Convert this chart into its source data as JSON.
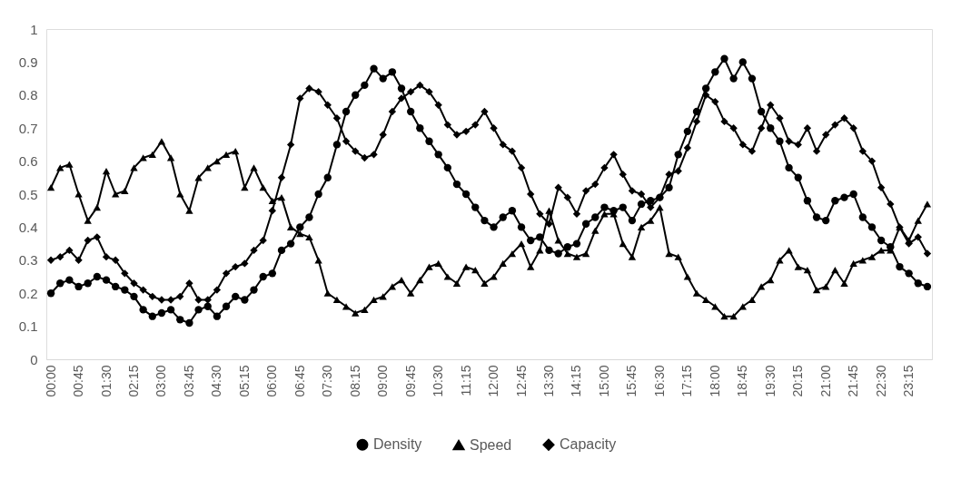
{
  "chart_data": {
    "type": "line",
    "categories": [
      "00:00",
      null,
      null,
      "00:45",
      null,
      null,
      "01:30",
      null,
      null,
      "02:15",
      null,
      null,
      "03:00",
      null,
      null,
      "03:45",
      null,
      null,
      "04:30",
      null,
      null,
      "05:15",
      null,
      null,
      "06:00",
      null,
      null,
      "06:45",
      null,
      null,
      "07:30",
      null,
      null,
      "08:15",
      null,
      null,
      "09:00",
      null,
      null,
      "09:45",
      null,
      null,
      "10:30",
      null,
      null,
      "11:15",
      null,
      null,
      "12:00",
      null,
      null,
      "12:45",
      null,
      null,
      "13:30",
      null,
      null,
      "14:15",
      null,
      null,
      "15:00",
      null,
      null,
      "15:45",
      null,
      null,
      "16:30",
      null,
      null,
      "17:15",
      null,
      null,
      "18:00",
      null,
      null,
      "18:45",
      null,
      null,
      "19:30",
      null,
      null,
      "20:15",
      null,
      null,
      "21:00",
      null,
      null,
      "21:45",
      null,
      null,
      "22:30",
      null,
      null,
      "23:15",
      null,
      null
    ],
    "series": [
      {
        "name": "Density",
        "color": "#000000",
        "marker": "circle",
        "values": [
          0.2,
          0.23,
          0.24,
          0.22,
          0.23,
          0.25,
          0.24,
          0.22,
          0.21,
          0.19,
          0.15,
          0.13,
          0.14,
          0.15,
          0.12,
          0.11,
          0.15,
          0.16,
          0.13,
          0.16,
          0.19,
          0.18,
          0.21,
          0.25,
          0.26,
          0.33,
          0.35,
          0.4,
          0.43,
          0.5,
          0.55,
          0.65,
          0.75,
          0.8,
          0.83,
          0.88,
          0.85,
          0.87,
          0.82,
          0.75,
          0.7,
          0.66,
          0.62,
          0.58,
          0.53,
          0.5,
          0.46,
          0.42,
          0.4,
          0.43,
          0.45,
          0.4,
          0.36,
          0.37,
          0.33,
          0.32,
          0.34,
          0.35,
          0.41,
          0.43,
          0.46,
          0.45,
          0.46,
          0.42,
          0.47,
          0.48,
          0.49,
          0.52,
          0.62,
          0.69,
          0.75,
          0.82,
          0.87,
          0.91,
          0.85,
          0.9,
          0.85,
          0.75,
          0.7,
          0.66,
          0.58,
          0.55,
          0.48,
          0.43,
          0.42,
          0.48,
          0.49,
          0.5,
          0.43,
          0.4,
          0.36,
          0.34,
          0.28,
          0.26,
          0.23,
          0.22
        ]
      },
      {
        "name": "Speed",
        "color": "#000000",
        "marker": "triangle",
        "values": [
          0.52,
          0.58,
          0.59,
          0.5,
          0.42,
          0.46,
          0.57,
          0.5,
          0.51,
          0.58,
          0.61,
          0.62,
          0.66,
          0.61,
          0.5,
          0.45,
          0.55,
          0.58,
          0.6,
          0.62,
          0.63,
          0.52,
          0.58,
          0.52,
          0.48,
          0.49,
          0.4,
          0.38,
          0.37,
          0.3,
          0.2,
          0.18,
          0.16,
          0.14,
          0.15,
          0.18,
          0.19,
          0.22,
          0.24,
          0.2,
          0.24,
          0.28,
          0.29,
          0.25,
          0.23,
          0.28,
          0.27,
          0.23,
          0.25,
          0.29,
          0.32,
          0.35,
          0.28,
          0.33,
          0.45,
          0.36,
          0.32,
          0.31,
          0.32,
          0.39,
          0.44,
          0.44,
          0.35,
          0.31,
          0.4,
          0.42,
          0.46,
          0.32,
          0.31,
          0.25,
          0.2,
          0.18,
          0.16,
          0.13,
          0.13,
          0.16,
          0.18,
          0.22,
          0.24,
          0.3,
          0.33,
          0.28,
          0.27,
          0.21,
          0.22,
          0.27,
          0.23,
          0.29,
          0.3,
          0.31,
          0.33,
          0.33,
          0.4,
          0.36,
          0.42,
          0.47
        ]
      },
      {
        "name": "Capacity",
        "color": "#000000",
        "marker": "diamond",
        "values": [
          0.3,
          0.31,
          0.33,
          0.3,
          0.36,
          0.37,
          0.31,
          0.3,
          0.26,
          0.23,
          0.21,
          0.19,
          0.18,
          0.18,
          0.19,
          0.23,
          0.18,
          0.18,
          0.21,
          0.26,
          0.28,
          0.29,
          0.33,
          0.36,
          0.45,
          0.55,
          0.65,
          0.79,
          0.82,
          0.81,
          0.77,
          0.73,
          0.66,
          0.63,
          0.61,
          0.62,
          0.68,
          0.75,
          0.79,
          0.81,
          0.83,
          0.81,
          0.77,
          0.71,
          0.68,
          0.69,
          0.71,
          0.75,
          0.7,
          0.65,
          0.63,
          0.58,
          0.5,
          0.44,
          0.41,
          0.52,
          0.49,
          0.44,
          0.51,
          0.53,
          0.58,
          0.62,
          0.56,
          0.51,
          0.5,
          0.46,
          0.49,
          0.56,
          0.57,
          0.64,
          0.72,
          0.8,
          0.78,
          0.72,
          0.7,
          0.65,
          0.63,
          0.7,
          0.77,
          0.73,
          0.66,
          0.65,
          0.7,
          0.63,
          0.68,
          0.71,
          0.73,
          0.7,
          0.63,
          0.6,
          0.52,
          0.47,
          0.4,
          0.35,
          0.37,
          0.32
        ]
      }
    ],
    "ylim": [
      0,
      1
    ],
    "yticks": [
      0,
      0.1,
      0.2,
      0.3,
      0.4,
      0.5,
      0.6,
      0.7,
      0.8,
      0.9,
      1
    ],
    "grid": false,
    "legend": "bottom",
    "line_style": "solid"
  }
}
